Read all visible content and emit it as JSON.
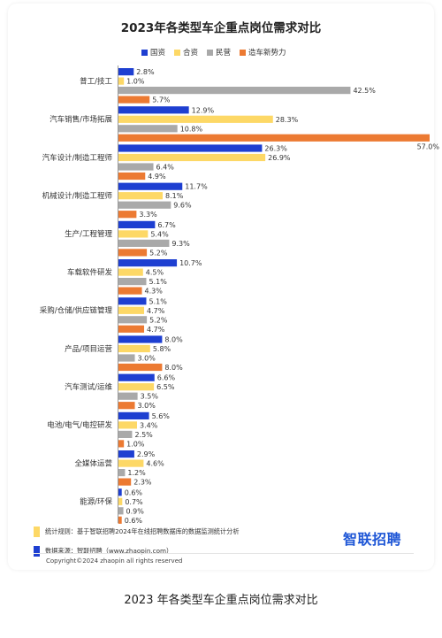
{
  "chart_data": {
    "type": "bar",
    "orientation": "horizontal",
    "title": "2023年各类型车企重点岗位需求对比",
    "categories": [
      "普工/技工",
      "汽车销售/市场拓展",
      "汽车设计/制造工程师",
      "机械设计/制造工程师",
      "生产/工程管理",
      "车载软件研发",
      "采购/仓储/供应链管理",
      "产品/项目运营",
      "汽车测试/运维",
      "电池/电气/电控研发",
      "全媒体运营",
      "能源/环保"
    ],
    "series": [
      {
        "name": "国资",
        "color": "#1e3fd1",
        "values": [
          2.8,
          12.9,
          26.3,
          11.7,
          6.7,
          10.7,
          5.1,
          8.0,
          6.6,
          5.6,
          2.9,
          0.6
        ]
      },
      {
        "name": "合资",
        "color": "#fdd866",
        "values": [
          1.0,
          28.3,
          26.9,
          8.1,
          5.4,
          4.5,
          4.7,
          5.8,
          6.5,
          3.4,
          4.6,
          0.7
        ]
      },
      {
        "name": "民营",
        "color": "#a9a9a9",
        "values": [
          42.5,
          10.8,
          6.4,
          9.6,
          9.3,
          5.1,
          5.2,
          3.0,
          3.5,
          2.5,
          1.2,
          0.9
        ]
      },
      {
        "name": "造车新势力",
        "color": "#ec7a32",
        "values": [
          5.7,
          57.0,
          4.9,
          3.3,
          5.2,
          4.3,
          4.7,
          8.0,
          3.0,
          1.0,
          2.3,
          0.6
        ]
      }
    ],
    "value_suffix": "%",
    "xlim": [
      0,
      57.0
    ],
    "grid": false,
    "legend_position": "top"
  },
  "notes": {
    "rule": "统计规则：基于智联招聘2024年在线招聘数据库的数据监测统计分析",
    "rule_color": "#fdd866",
    "source": "数据来源：智联招聘（www.zhaopin.com）",
    "source_color": "#1e3fd1"
  },
  "brand": {
    "name": "智联招聘",
    "color": "#1e56d6"
  },
  "copyright": "Copyright©2024 zhaopin all rights reserved",
  "caption": "2023 年各类型车企重点岗位需求对比"
}
